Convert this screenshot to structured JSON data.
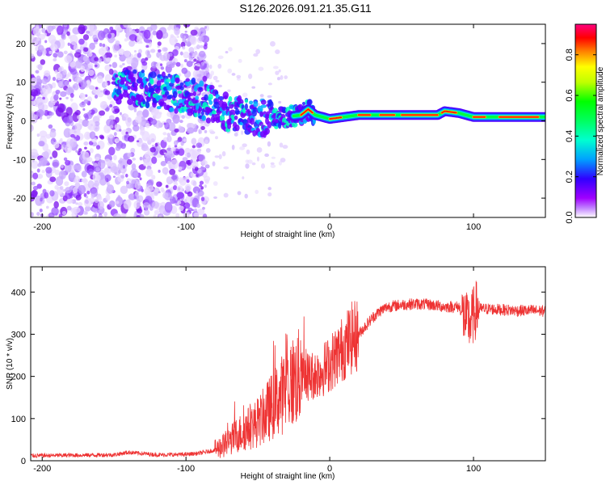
{
  "title": "S126.2026.091.21.35.G11",
  "chart_data": [
    {
      "type": "heatmap",
      "xlabel": "Height of straight line (km)",
      "ylabel": "Frequency (Hz)",
      "xlim": [
        -208,
        150
      ],
      "ylim": [
        -25,
        25
      ],
      "xticks": [
        -200,
        -100,
        0,
        100
      ],
      "yticks": [
        -20,
        -10,
        0,
        10,
        20
      ],
      "colorbar": {
        "label": "Normalized spectral amplitude",
        "range": [
          0,
          0.95
        ],
        "ticks": [
          0.0,
          0.2,
          0.4,
          0.6,
          0.8
        ],
        "tick_labels": [
          "0.0",
          "0.2",
          "0.4",
          "0.6",
          "0.8"
        ],
        "colors": [
          "#ffffff",
          "#a000ff",
          "#3000ff",
          "#00a0ff",
          "#00ffd0",
          "#00ff00",
          "#c0ff00",
          "#ffff00",
          "#ff8000",
          "#ff0000",
          "#ff0080"
        ]
      },
      "ridge": {
        "description_points": [
          {
            "x": -150,
            "y": 9
          },
          {
            "x": -120,
            "y": 8
          },
          {
            "x": -95,
            "y": 6
          },
          {
            "x": -80,
            "y": 4
          },
          {
            "x": -70,
            "y": 2
          },
          {
            "x": -60,
            "y": 1
          },
          {
            "x": -50,
            "y": 1
          },
          {
            "x": -40,
            "y": 0.5
          },
          {
            "x": -30,
            "y": 1
          },
          {
            "x": -20,
            "y": 1.5
          },
          {
            "x": -15,
            "y": 3
          },
          {
            "x": -10,
            "y": 1.5
          },
          {
            "x": 0,
            "y": 0.5
          },
          {
            "x": 20,
            "y": 1.5
          },
          {
            "x": 40,
            "y": 1.5
          },
          {
            "x": 60,
            "y": 1.5
          },
          {
            "x": 75,
            "y": 1.5
          },
          {
            "x": 80,
            "y": 2.5
          },
          {
            "x": 90,
            "y": 2
          },
          {
            "x": 100,
            "y": 1
          },
          {
            "x": 120,
            "y": 1
          },
          {
            "x": 150,
            "y": 1
          }
        ]
      }
    },
    {
      "type": "line",
      "xlabel": "Height of straight line (km)",
      "ylabel": "SNR (10 * v/v)",
      "xlim": [
        -208,
        150
      ],
      "ylim": [
        0,
        460
      ],
      "xticks": [
        -200,
        -100,
        0,
        100
      ],
      "yticks": [
        0,
        100,
        200,
        300,
        400
      ],
      "series": [
        {
          "name": "SNR",
          "color": "#ee3333",
          "x": [
            -208,
            -180,
            -150,
            -140,
            -120,
            -100,
            -90,
            -80,
            -70,
            -65,
            -60,
            -55,
            -50,
            -45,
            -40,
            -35,
            -30,
            -25,
            -20,
            -15,
            -10,
            -5,
            0,
            5,
            10,
            15,
            20,
            25,
            30,
            35,
            40,
            50,
            60,
            70,
            80,
            90,
            95,
            98,
            100,
            102,
            105,
            110,
            120,
            130,
            140,
            150
          ],
          "values": [
            12,
            13,
            14,
            20,
            14,
            15,
            18,
            25,
            45,
            60,
            70,
            80,
            90,
            110,
            130,
            150,
            170,
            190,
            200,
            200,
            205,
            215,
            230,
            250,
            270,
            290,
            300,
            320,
            340,
            355,
            365,
            370,
            372,
            370,
            365,
            365,
            330,
            330,
            345,
            360,
            360,
            360,
            358,
            356,
            356,
            355
          ]
        }
      ]
    }
  ]
}
